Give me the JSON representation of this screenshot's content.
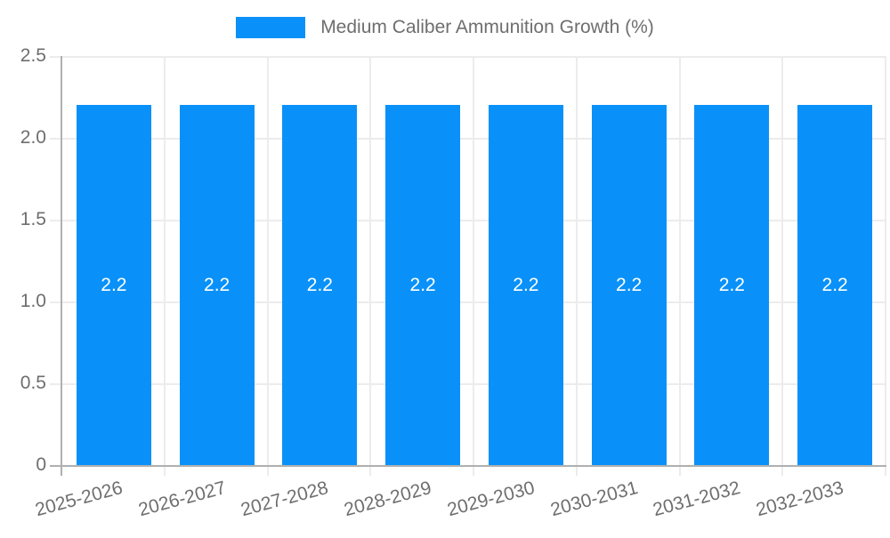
{
  "legend": {
    "label": "Medium Caliber Ammunition Growth (%)"
  },
  "chart_data": {
    "type": "bar",
    "title": "Medium Caliber Ammunition Growth (%)",
    "categories": [
      "2025-2026",
      "2026-2027",
      "2027-2028",
      "2028-2029",
      "2029-2030",
      "2030-2031",
      "2031-2032",
      "2032-2033"
    ],
    "values": [
      2.2,
      2.2,
      2.2,
      2.2,
      2.2,
      2.2,
      2.2,
      2.2
    ],
    "bar_labels": [
      "2.2",
      "2.2",
      "2.2",
      "2.2",
      "2.2",
      "2.2",
      "2.2",
      "2.2"
    ],
    "xlabel": "",
    "ylabel": "",
    "ylim": [
      0,
      2.5
    ],
    "yticks": [
      0,
      0.5,
      1.0,
      1.5,
      2.0,
      2.5
    ],
    "ytick_labels": [
      "0",
      "0.5",
      "1.0",
      "1.5",
      "2.0",
      "2.5"
    ],
    "grid": true,
    "legend_position": "top",
    "x_label_rotation_deg": -15,
    "colors": {
      "bar": "#0991F9",
      "value_label": "#FFFFFF",
      "grid": "#ECECEC",
      "axis": "#B0B0B0",
      "tick_text": "#6E6E6E",
      "background": "#FFFFFF"
    }
  }
}
